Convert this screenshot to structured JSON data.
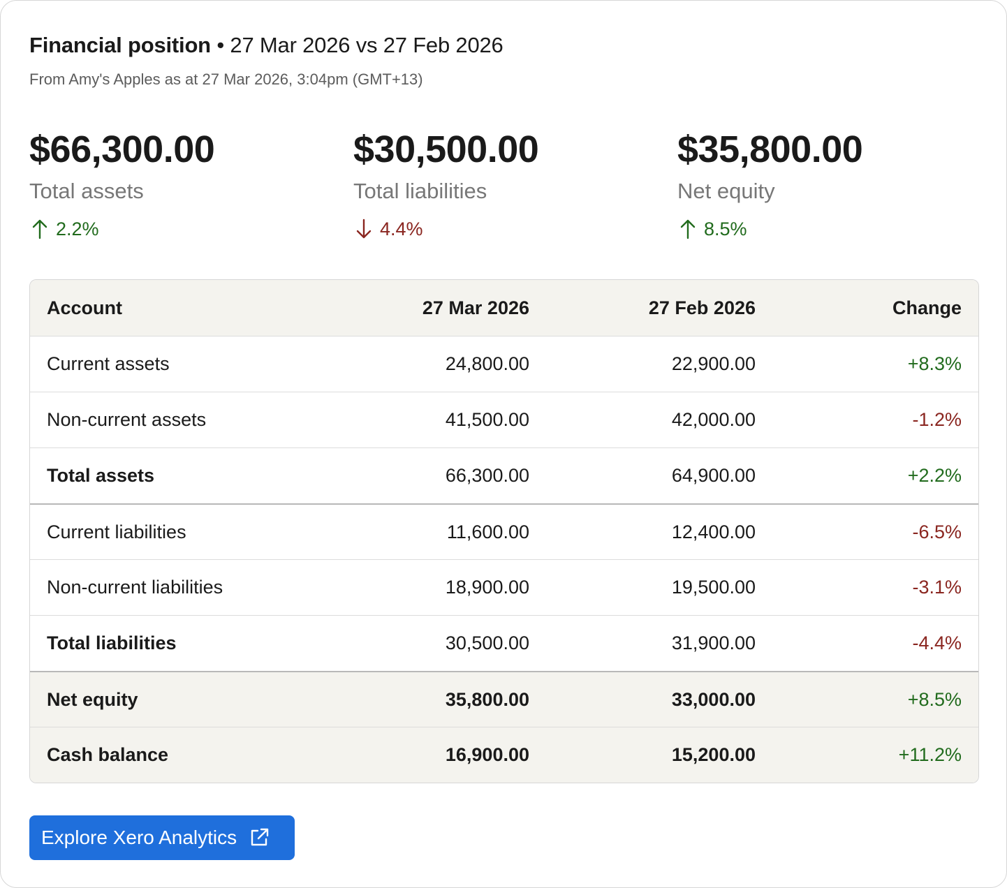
{
  "header": {
    "title_strong": "Financial position",
    "bullet": "•",
    "title_range": "27 Mar 2026 vs 27 Feb 2026",
    "subtitle": "From Amy's Apples as at 27 Mar 2026, 3:04pm (GMT+13)"
  },
  "metrics": [
    {
      "amount": "$66,300.00",
      "label": "Total assets",
      "delta": "2.2%",
      "direction": "up",
      "icon": "arrow-up-icon"
    },
    {
      "amount": "$30,500.00",
      "label": "Total liabilities",
      "delta": "4.4%",
      "direction": "down",
      "icon": "arrow-down-icon"
    },
    {
      "amount": "$35,800.00",
      "label": "Net equity",
      "delta": "8.5%",
      "direction": "up",
      "icon": "arrow-up-icon"
    }
  ],
  "table": {
    "headers": [
      "Account",
      "27 Mar 2026",
      "27 Feb 2026",
      "Change"
    ],
    "rows": [
      {
        "account": "Current assets",
        "mar": "24,800.00",
        "feb": "22,900.00",
        "change": "+8.3%"
      },
      {
        "account": "Non-current assets",
        "mar": "41,500.00",
        "feb": "42,000.00",
        "change": "-1.2%"
      },
      {
        "account": "Total assets",
        "mar": "66,300.00",
        "feb": "64,900.00",
        "change": "+2.2%"
      },
      {
        "account": "Current liabilities",
        "mar": "11,600.00",
        "feb": "12,400.00",
        "change": "-6.5%"
      },
      {
        "account": "Non-current liabilities",
        "mar": "18,900.00",
        "feb": "19,500.00",
        "change": "-3.1%"
      },
      {
        "account": "Total liabilities",
        "mar": "30,500.00",
        "feb": "31,900.00",
        "change": "-4.4%"
      },
      {
        "account": "Net equity",
        "mar": "35,800.00",
        "feb": "33,000.00",
        "change": "+8.5%"
      },
      {
        "account": "Cash balance",
        "mar": "16,900.00",
        "feb": "15,200.00",
        "change": "+11.2%"
      }
    ]
  },
  "button": {
    "label": "Explore Xero Analytics",
    "icon": "external-link-icon"
  },
  "colors": {
    "positive": "#216b1d",
    "negative": "#8a2620",
    "accent": "#1f6fdc",
    "header_bg": "#f4f3ee"
  }
}
